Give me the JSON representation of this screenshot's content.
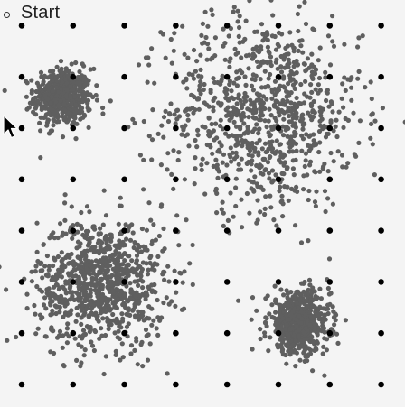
{
  "start_button": {
    "label": "Start"
  },
  "colors": {
    "background": "#f4f4f4",
    "scatter_point": "#5f5f5f",
    "grid_dot": "#000000"
  },
  "icons": {
    "cursor": "mouse-pointer-icon",
    "start_marker": "circle-outline-icon"
  },
  "chart_data": {
    "type": "scatter",
    "title": "",
    "xlabel": "",
    "ylabel": "",
    "xlim": [
      0,
      8
    ],
    "ylim": [
      0,
      8
    ],
    "grid_dots": {
      "x": [
        0,
        1,
        2,
        3,
        4,
        5,
        6,
        7
      ],
      "y": [
        0,
        1,
        2,
        3,
        4,
        5,
        6,
        7
      ]
    },
    "clusters": [
      {
        "name": "cluster-top-left",
        "center": [
          0.8,
          5.6
        ],
        "spread": 0.28,
        "count": 520
      },
      {
        "name": "cluster-top-right",
        "center": [
          4.7,
          5.3
        ],
        "spread": 0.95,
        "count": 900
      },
      {
        "name": "cluster-bottom-left",
        "center": [
          1.55,
          2.0
        ],
        "spread": 0.62,
        "count": 900
      },
      {
        "name": "cluster-bottom-right",
        "center": [
          5.4,
          1.2
        ],
        "spread": 0.3,
        "count": 620
      }
    ]
  }
}
